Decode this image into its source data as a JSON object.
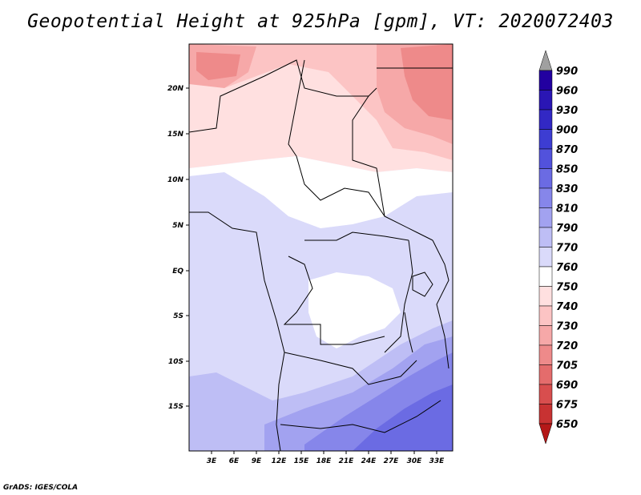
{
  "title": "Geopotential Height at 925hPa [gpm], VT: 2020072403",
  "credit": "GrADS: IGES/COLA",
  "map": {
    "lon_labels": [
      "3E",
      "6E",
      "9E",
      "12E",
      "15E",
      "18E",
      "21E",
      "24E",
      "27E",
      "30E",
      "33E"
    ],
    "lat_labels": [
      "20N",
      "15N",
      "10N",
      "5N",
      "EQ",
      "5S",
      "10S",
      "15S"
    ]
  },
  "colorbar": {
    "levels": [
      "990",
      "960",
      "930",
      "900",
      "870",
      "850",
      "830",
      "810",
      "790",
      "770",
      "760",
      "750",
      "740",
      "730",
      "720",
      "705",
      "690",
      "675",
      "650"
    ],
    "colors": [
      "#2200a0",
      "#2a16b4",
      "#3228c4",
      "#3d3dd2",
      "#5252dc",
      "#6b6be3",
      "#8686ea",
      "#a2a2f0",
      "#bebef5",
      "#dadafa",
      "#ffffff",
      "#ffe0e0",
      "#fcc4c4",
      "#f6a8a8",
      "#ee8a8a",
      "#e46c6c",
      "#d84e4e",
      "#c83232",
      "#b41818"
    ],
    "top_arrow_color": "#a0a0a0"
  }
}
